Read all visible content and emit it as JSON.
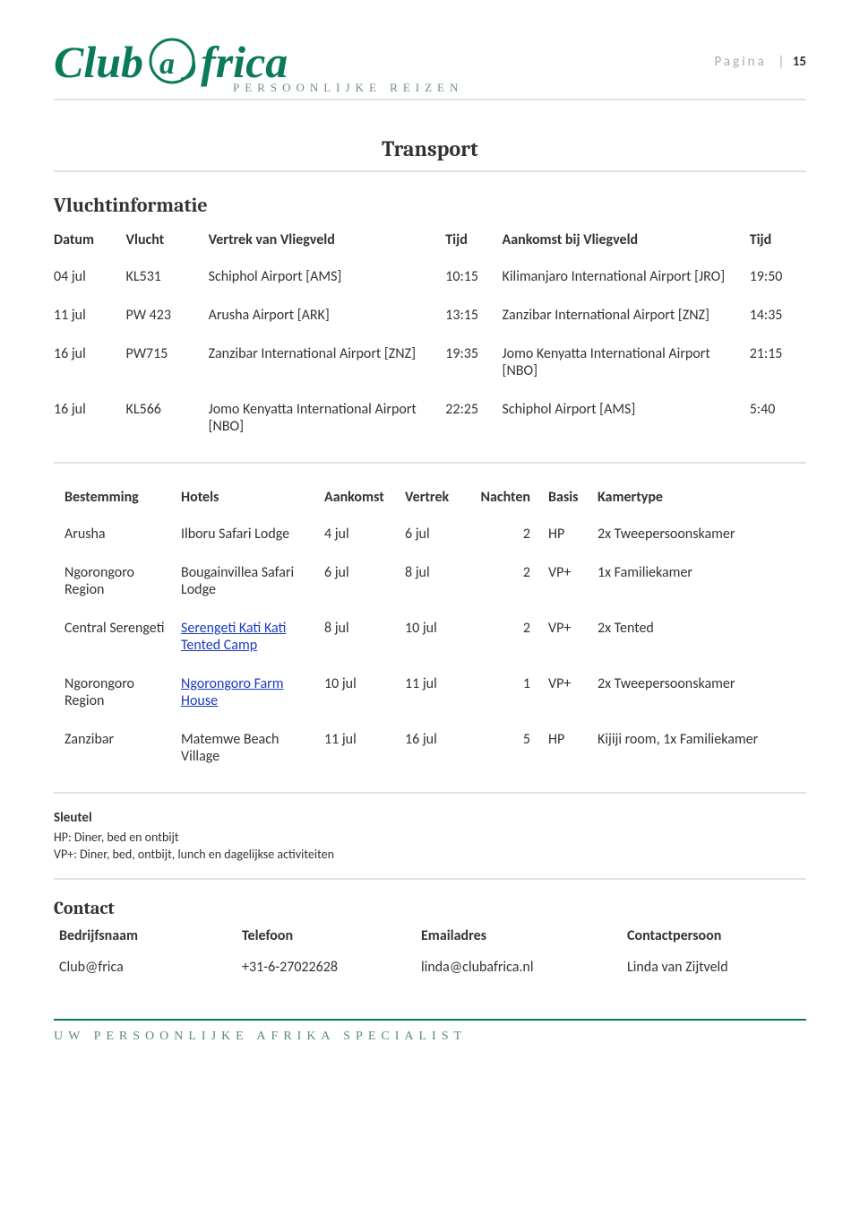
{
  "brand": {
    "logo_left": "Club",
    "logo_right": "frica",
    "subline": "PERSOONLIJKE REIZEN",
    "color": "#0b7a5a"
  },
  "page_label": "Pagina",
  "page_number": "15",
  "section_title": "Transport",
  "flights": {
    "heading": "Vluchtinformatie",
    "headers": {
      "date": "Datum",
      "flight": "Vlucht",
      "dep_airport": "Vertrek van Vliegveld",
      "dep_time": "Tijd",
      "arr_airport": "Aankomst bij Vliegveld",
      "arr_time": "Tijd"
    },
    "rows": [
      {
        "date": "04 jul",
        "flight": "KL531",
        "dep": "Schiphol Airport [AMS]",
        "dtime": "10:15",
        "arr": "Kilimanjaro International Airport [JRO]",
        "atime": "19:50"
      },
      {
        "date": "11 jul",
        "flight": "PW 423",
        "dep": "Arusha Airport [ARK]",
        "dtime": "13:15",
        "arr": "Zanzibar International Airport [ZNZ]",
        "atime": "14:35"
      },
      {
        "date": "16 jul",
        "flight": "PW715",
        "dep": "Zanzibar International Airport [ZNZ]",
        "dtime": "19:35",
        "arr": "Jomo Kenyatta International Airport [NBO]",
        "atime": "21:15"
      },
      {
        "date": "16 jul",
        "flight": "KL566",
        "dep": "Jomo Kenyatta International Airport [NBO]",
        "dtime": "22:25",
        "arr": "Schiphol Airport [AMS]",
        "atime": "5:40"
      }
    ]
  },
  "hotels": {
    "headers": {
      "dest": "Bestemming",
      "hotel": "Hotels",
      "arr": "Aankomst",
      "dep": "Vertrek",
      "nights": "Nachten",
      "basis": "Basis",
      "room": "Kamertype"
    },
    "rows": [
      {
        "dest": "Arusha",
        "hotel": "Ilboru Safari Lodge",
        "link": false,
        "arr": "4 jul",
        "dep": "6 jul",
        "nights": "2",
        "basis": "HP",
        "room": "2x Tweepersoonskamer"
      },
      {
        "dest": "Ngorongoro Region",
        "hotel": "Bougainvillea Safari Lodge",
        "link": false,
        "arr": "6 jul",
        "dep": "8 jul",
        "nights": "2",
        "basis": "VP+",
        "room": "1x Familiekamer"
      },
      {
        "dest": "Central Serengeti",
        "hotel": "Serengeti Kati Kati Tented Camp",
        "link": true,
        "arr": "8 jul",
        "dep": "10 jul",
        "nights": "2",
        "basis": "VP+",
        "room": "2x Tented"
      },
      {
        "dest": "Ngorongoro Region",
        "hotel": "Ngorongoro Farm House",
        "link": true,
        "arr": "10 jul",
        "dep": "11 jul",
        "nights": "1",
        "basis": "VP+",
        "room": "2x Tweepersoonskamer"
      },
      {
        "dest": "Zanzibar",
        "hotel": "Matemwe Beach Village",
        "link": false,
        "arr": "11 jul",
        "dep": "16 jul",
        "nights": "5",
        "basis": "HP",
        "room": "Kijiji room, 1x Familiekamer"
      }
    ]
  },
  "key": {
    "title": "Sleutel",
    "lines": [
      "HP: Diner, bed en ontbijt",
      "VP+: Diner, bed, ontbijt, lunch en dagelijkse activiteiten"
    ]
  },
  "contact": {
    "heading": "Contact",
    "headers": {
      "company": "Bedrijfsnaam",
      "phone": "Telefoon",
      "email": "Emailadres",
      "person": "Contactpersoon"
    },
    "row": {
      "company": "Club@frica",
      "phone": "+31-6-27022628",
      "email": "linda@clubafrica.nl",
      "person": "Linda van Zijtveld"
    }
  },
  "footer": "UW PERSOONLIJKE AFRIKA SPECIALIST"
}
